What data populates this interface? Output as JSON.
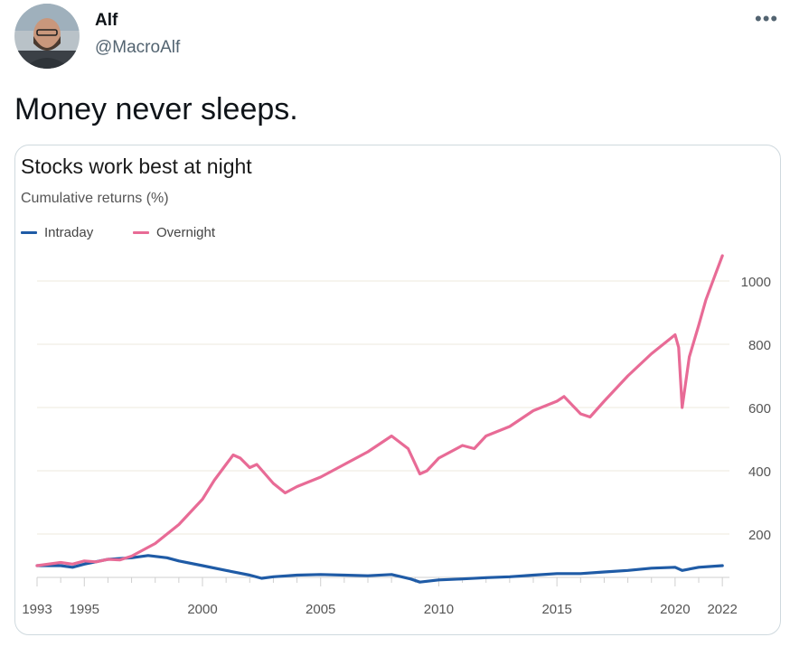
{
  "tweet": {
    "author_name": "Alf",
    "author_handle": "@MacroAlf",
    "more_label": "•••",
    "text": "Money never sleeps."
  },
  "colors": {
    "intraday": "#1f5ba6",
    "overnight": "#e86b96",
    "grid": "#ece8dd",
    "tick_text": "#555555"
  },
  "chart_data": {
    "type": "line",
    "title": "Stocks work best at night",
    "subtitle": "Cumulative returns (%)",
    "xlabel": "",
    "ylabel": "Cumulative returns (%)",
    "xlim": [
      1993,
      2022.3
    ],
    "ylim": [
      40,
      1130
    ],
    "x_ticks": [
      1993,
      1995,
      2000,
      2005,
      2010,
      2015,
      2020,
      2022
    ],
    "y_ticks": [
      200,
      400,
      600,
      800,
      1000
    ],
    "legend": "top-left",
    "series": [
      {
        "name": "Intraday",
        "x": [
          1993,
          1994,
          1994.5,
          1995,
          1996,
          1997,
          1997.7,
          1998.5,
          1999,
          2000,
          2001,
          2002,
          2002.5,
          2003,
          2004,
          2005,
          2006,
          2007,
          2008,
          2008.8,
          2009.2,
          2010,
          2011,
          2012,
          2013,
          2014,
          2015,
          2016,
          2017,
          2018,
          2019,
          2020,
          2020.3,
          2021,
          2022
        ],
        "y": [
          100,
          100,
          95,
          105,
          120,
          125,
          132,
          125,
          115,
          100,
          85,
          70,
          60,
          65,
          70,
          72,
          70,
          68,
          72,
          58,
          48,
          55,
          58,
          62,
          65,
          70,
          75,
          75,
          80,
          85,
          92,
          95,
          85,
          95,
          100
        ]
      },
      {
        "name": "Overnight",
        "x": [
          1993,
          1994,
          1994.5,
          1995,
          1995.5,
          1996,
          1996.5,
          1997,
          1998,
          1999,
          2000,
          2000.5,
          2001,
          2001.3,
          2001.6,
          2002,
          2002.3,
          2003,
          2003.5,
          2004,
          2005,
          2006,
          2007,
          2008,
          2008.7,
          2009.2,
          2009.5,
          2010,
          2011,
          2011.5,
          2012,
          2013,
          2014,
          2015,
          2015.3,
          2016,
          2016.4,
          2017,
          2018,
          2019,
          2020,
          2020.15,
          2020.3,
          2020.6,
          2021,
          2021.3,
          2021.7,
          2022
        ],
        "y": [
          100,
          110,
          105,
          115,
          112,
          120,
          118,
          130,
          170,
          230,
          310,
          370,
          420,
          450,
          440,
          410,
          420,
          360,
          330,
          350,
          380,
          420,
          460,
          510,
          470,
          390,
          400,
          440,
          480,
          470,
          510,
          540,
          590,
          620,
          635,
          580,
          570,
          620,
          700,
          770,
          830,
          790,
          600,
          760,
          860,
          940,
          1020,
          1080
        ]
      }
    ]
  }
}
